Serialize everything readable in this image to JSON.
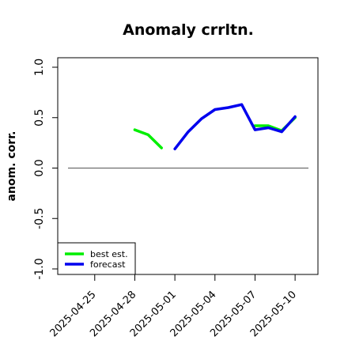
{
  "chart_data": {
    "type": "line",
    "title": "Anomaly crrltn.",
    "xlabel": "",
    "ylabel": "anom. corr.",
    "ylim": [
      -1.0,
      1.0
    ],
    "yticks": [
      "-1.0",
      "-0.5",
      "0.0",
      "0.5",
      "1.0"
    ],
    "ytick_values": [
      -1.0,
      -0.5,
      0.0,
      0.5,
      1.0
    ],
    "x_range": [
      "2025-04-23",
      "2025-05-11"
    ],
    "xticks": [
      "2025-04-25",
      "2025-04-28",
      "2025-05-01",
      "2025-05-04",
      "2025-05-07",
      "2025-05-10"
    ],
    "highlight_xtick": "2025-05-01",
    "reference_line": 0.0,
    "grid": false,
    "legend_placement": "bottom-left",
    "series": [
      {
        "name": "best est.",
        "color": "#00ee00",
        "x": [
          "2025-04-24",
          "2025-04-25",
          "2025-04-26",
          "2025-04-27",
          "2025-04-28",
          "2025-04-29",
          "2025-04-30",
          "2025-05-01",
          "2025-05-02",
          "2025-05-03",
          "2025-05-04",
          "2025-05-05",
          "2025-05-06",
          "2025-05-07",
          "2025-05-08",
          "2025-05-09",
          "2025-05-10"
        ],
        "y": [
          null,
          null,
          null,
          null,
          0.38,
          0.33,
          0.2,
          null,
          null,
          null,
          null,
          null,
          null,
          0.42,
          0.42,
          0.37,
          0.5
        ]
      },
      {
        "name": "forecast",
        "color": "#0000ee",
        "x": [
          "2025-05-01",
          "2025-05-02",
          "2025-05-03",
          "2025-05-04",
          "2025-05-05",
          "2025-05-06",
          "2025-05-07",
          "2025-05-08",
          "2025-05-09",
          "2025-05-10"
        ],
        "y": [
          0.19,
          0.36,
          0.49,
          0.58,
          0.6,
          0.63,
          0.38,
          0.4,
          0.36,
          0.51
        ]
      }
    ]
  }
}
